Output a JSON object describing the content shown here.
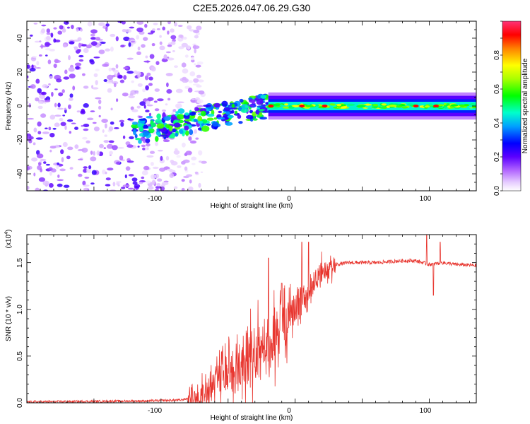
{
  "title": "C2E5.2026.047.06.29.G30",
  "chart_data": [
    {
      "type": "heatmap",
      "xlabel": "Height of straight line (km)",
      "ylabel": "Frequency (Hz)",
      "xlim": [
        -200,
        135
      ],
      "ylim": [
        -50,
        50
      ],
      "xticks": [
        "-100",
        "0",
        "100"
      ],
      "yticks": [
        "-40",
        "-20",
        "0",
        "20",
        "40"
      ],
      "colorbar": {
        "label": "Normalized spectral amplitude",
        "range": [
          0,
          1
        ],
        "ticks": [
          "0.0",
          "0.2",
          "0.4",
          "0.6",
          "0.8"
        ]
      },
      "annotations": {
        "noise_region_x": [
          -200,
          -80
        ],
        "ridge_start": [
          -120,
          -15
        ],
        "ridge_turn": [
          -20,
          0
        ],
        "ridge_end": [
          135,
          0
        ],
        "peak_points_x": [
          -18,
          5,
          22,
          90,
          105
        ]
      }
    },
    {
      "type": "line",
      "xlabel": "Height of straight line (km)",
      "ylabel": "SNR (10 * v/v)",
      "multiplier": "(x10",
      "multiplier_exp": "4",
      "xlim": [
        -200,
        135
      ],
      "ylim": [
        0,
        1.8
      ],
      "xticks": [
        "-100",
        "0",
        "100"
      ],
      "yticks": [
        "0.0",
        "0.5",
        "1.0",
        "1.5"
      ],
      "series": [
        {
          "name": "SNR",
          "color": "#e8362f",
          "anchors_x": [
            -200,
            -110,
            -85,
            -70,
            -60,
            -50,
            -40,
            -30,
            -20,
            -15,
            -10,
            -5,
            0,
            5,
            10,
            15,
            20,
            25,
            30,
            40,
            60,
            80,
            90,
            100,
            110,
            120,
            135
          ],
          "anchors_y": [
            0.01,
            0.02,
            0.03,
            0.08,
            0.18,
            0.28,
            0.38,
            0.5,
            0.62,
            0.7,
            0.82,
            0.9,
            1.02,
            1.1,
            1.2,
            1.3,
            1.38,
            1.44,
            1.48,
            1.5,
            1.5,
            1.52,
            1.52,
            1.48,
            1.5,
            1.48,
            1.47
          ],
          "spikes": [
            [
              -20,
              1.55
            ],
            [
              -10,
              1.28
            ],
            [
              5,
              1.72
            ],
            [
              10,
              1.72
            ],
            [
              98,
              1.8
            ],
            [
              103,
              1.15
            ],
            [
              108,
              1.72
            ]
          ]
        }
      ]
    }
  ]
}
